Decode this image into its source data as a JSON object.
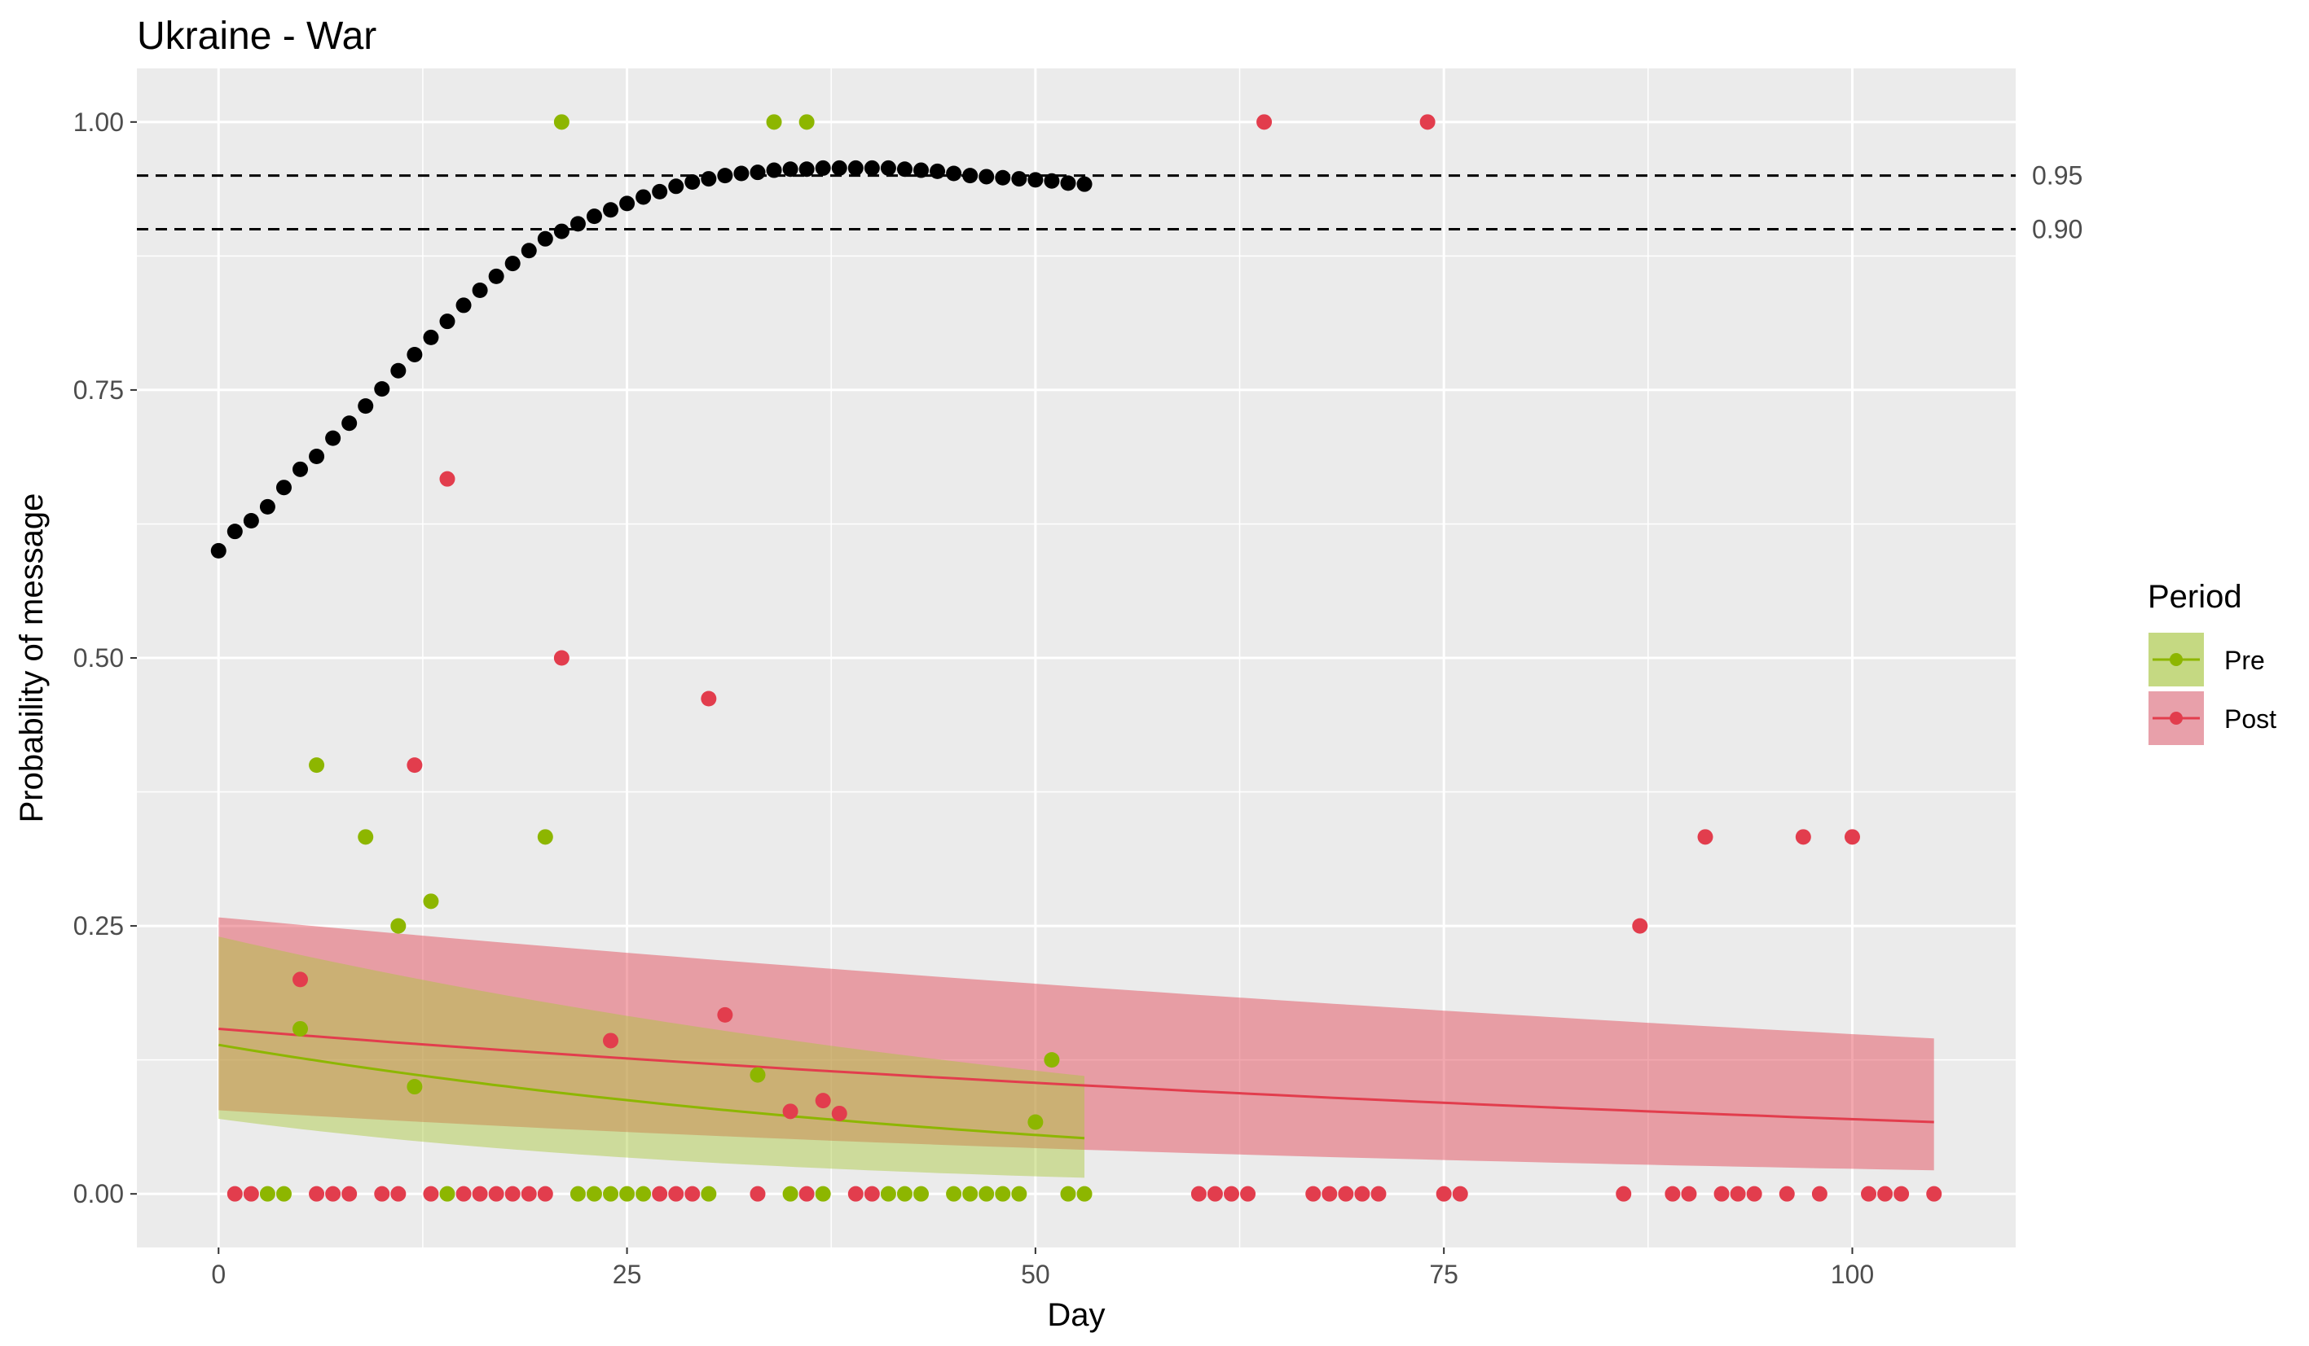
{
  "chart_data": {
    "type": "scatter",
    "title": "Ukraine - War",
    "xlabel": "Day",
    "ylabel": "Probability of message",
    "xlim": [
      -5,
      110
    ],
    "ylim": [
      -0.05,
      1.05
    ],
    "x_ticks": [
      0,
      25,
      50,
      75,
      100
    ],
    "x_tick_labels": [
      "0",
      "25",
      "50",
      "75",
      "100"
    ],
    "y_ticks": [
      0,
      0.25,
      0.5,
      0.75,
      1.0
    ],
    "y_tick_labels": [
      "0.00",
      "0.25",
      "0.50",
      "0.75",
      "1.00"
    ],
    "grid": true,
    "reference_lines": [
      {
        "y": 0.95,
        "label": "0.95",
        "style": "dashed"
      },
      {
        "y": 0.9,
        "label": "0.90",
        "style": "dashed"
      }
    ],
    "legend": {
      "title": "Period",
      "position": "right",
      "entries": [
        {
          "label": "Pre",
          "color": "#8db600",
          "fill": "#c5d982"
        },
        {
          "label": "Post",
          "color": "#e23d4d",
          "fill": "#e8a0aa"
        }
      ]
    },
    "cumulative_series": {
      "color": "#000000",
      "x": [
        0,
        1,
        2,
        3,
        4,
        5,
        6,
        7,
        8,
        9,
        10,
        11,
        12,
        13,
        14,
        15,
        16,
        17,
        18,
        19,
        20,
        21,
        22,
        23,
        24,
        25,
        26,
        27,
        28,
        29,
        30,
        31,
        32,
        33,
        34,
        35,
        36,
        37,
        38,
        39,
        40,
        41,
        42,
        43,
        44,
        45,
        46,
        47,
        48,
        49,
        50,
        51,
        52,
        53
      ],
      "y": [
        0.6,
        0.618,
        0.628,
        0.641,
        0.659,
        0.676,
        0.688,
        0.705,
        0.719,
        0.735,
        0.751,
        0.768,
        0.783,
        0.799,
        0.814,
        0.829,
        0.843,
        0.856,
        0.868,
        0.88,
        0.891,
        0.898,
        0.905,
        0.912,
        0.918,
        0.924,
        0.93,
        0.935,
        0.94,
        0.944,
        0.947,
        0.95,
        0.952,
        0.953,
        0.955,
        0.956,
        0.956,
        0.957,
        0.957,
        0.957,
        0.957,
        0.957,
        0.956,
        0.955,
        0.954,
        0.952,
        0.95,
        0.949,
        0.948,
        0.947,
        0.946,
        0.945,
        0.943,
        0.942
      ]
    },
    "series": [
      {
        "name": "Pre",
        "color": "#8db600",
        "points": [
          [
            3,
            0
          ],
          [
            4,
            0
          ],
          [
            5,
            0.154
          ],
          [
            6,
            0.4
          ],
          [
            9,
            0.333
          ],
          [
            11,
            0.25
          ],
          [
            12,
            0.1
          ],
          [
            13,
            0.273
          ],
          [
            14,
            0
          ],
          [
            20,
            0.333
          ],
          [
            21,
            1.0
          ],
          [
            22,
            0
          ],
          [
            23,
            0
          ],
          [
            24,
            0
          ],
          [
            25,
            0
          ],
          [
            26,
            0
          ],
          [
            30,
            0
          ],
          [
            33,
            0.111
          ],
          [
            34,
            1.0
          ],
          [
            35,
            0
          ],
          [
            36,
            1.0
          ],
          [
            37,
            0
          ],
          [
            41,
            0
          ],
          [
            42,
            0
          ],
          [
            43,
            0
          ],
          [
            45,
            0
          ],
          [
            46,
            0
          ],
          [
            47,
            0
          ],
          [
            48,
            0
          ],
          [
            49,
            0
          ],
          [
            50,
            0.067
          ],
          [
            51,
            0.125
          ],
          [
            52,
            0
          ],
          [
            53,
            0
          ]
        ],
        "fit": {
          "x": [
            0,
            53
          ],
          "y": [
            0.139,
            0.052
          ],
          "lower": [
            0.07,
            0.015
          ],
          "upper": [
            0.24,
            0.11
          ]
        }
      },
      {
        "name": "Post",
        "color": "#e23d4d",
        "points": [
          [
            1,
            0
          ],
          [
            2,
            0
          ],
          [
            5,
            0.2
          ],
          [
            6,
            0
          ],
          [
            7,
            0
          ],
          [
            8,
            0
          ],
          [
            10,
            0
          ],
          [
            11,
            0
          ],
          [
            12,
            0.4
          ],
          [
            13,
            0
          ],
          [
            14,
            0.667
          ],
          [
            15,
            0
          ],
          [
            16,
            0
          ],
          [
            17,
            0
          ],
          [
            18,
            0
          ],
          [
            19,
            0
          ],
          [
            20,
            0
          ],
          [
            21,
            0.5
          ],
          [
            24,
            0.143
          ],
          [
            27,
            0
          ],
          [
            28,
            0
          ],
          [
            29,
            0
          ],
          [
            30,
            0.462
          ],
          [
            31,
            0.167
          ],
          [
            33,
            0
          ],
          [
            35,
            0.077
          ],
          [
            36,
            0
          ],
          [
            37,
            0.087
          ],
          [
            38,
            0.075
          ],
          [
            39,
            0
          ],
          [
            40,
            0
          ],
          [
            60,
            0
          ],
          [
            61,
            0
          ],
          [
            62,
            0
          ],
          [
            63,
            0
          ],
          [
            64,
            1.0
          ],
          [
            67,
            0
          ],
          [
            68,
            0
          ],
          [
            69,
            0
          ],
          [
            70,
            0
          ],
          [
            71,
            0
          ],
          [
            74,
            1.0
          ],
          [
            75,
            0
          ],
          [
            76,
            0
          ],
          [
            86,
            0
          ],
          [
            87,
            0.25
          ],
          [
            89,
            0
          ],
          [
            90,
            0
          ],
          [
            91,
            0.333
          ],
          [
            92,
            0
          ],
          [
            93,
            0
          ],
          [
            94,
            0
          ],
          [
            96,
            0
          ],
          [
            97,
            0.333
          ],
          [
            98,
            0
          ],
          [
            100,
            0.333
          ],
          [
            101,
            0
          ],
          [
            102,
            0
          ],
          [
            103,
            0
          ],
          [
            105,
            0
          ]
        ],
        "fit": {
          "x": [
            0,
            105
          ],
          "y": [
            0.154,
            0.067
          ],
          "lower": [
            0.078,
            0.022
          ],
          "upper": [
            0.258,
            0.145
          ]
        }
      }
    ]
  }
}
